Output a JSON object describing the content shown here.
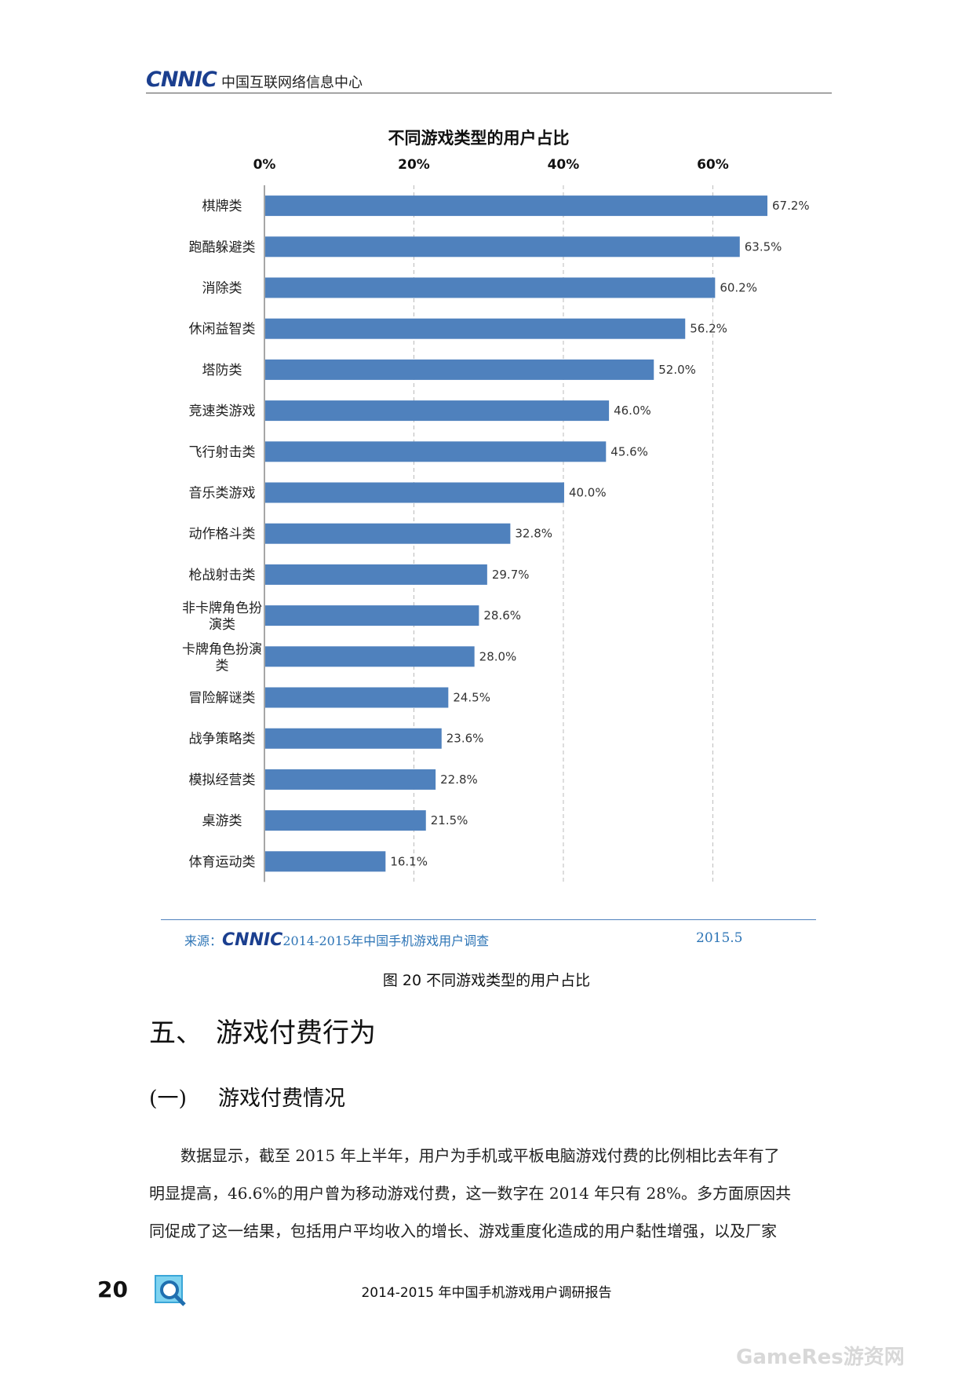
{
  "header": {
    "logo": "CNNIC",
    "org": "中国互联网络信息中心"
  },
  "chart_data": {
    "type": "bar",
    "orientation": "horizontal",
    "title": "不同游戏类型的用户占比",
    "xlim": [
      0,
      67.2
    ],
    "x_ticks": [
      "0%",
      "20%",
      "40%",
      "60%"
    ],
    "x_tick_values": [
      0,
      20,
      40,
      60
    ],
    "grid": "vertical dashed",
    "bar_color": "#4f81bd",
    "categories": [
      [
        "棋牌类"
      ],
      [
        "跑酷躲避类"
      ],
      [
        "消除类"
      ],
      [
        "休闲益智类"
      ],
      [
        "塔防类"
      ],
      [
        "竞速类游戏"
      ],
      [
        "飞行射击类"
      ],
      [
        "音乐类游戏"
      ],
      [
        "动作格斗类"
      ],
      [
        "枪战射击类"
      ],
      [
        "非卡牌角色扮",
        "演类"
      ],
      [
        "卡牌角色扮演",
        "类"
      ],
      [
        "冒险解谜类"
      ],
      [
        "战争策略类"
      ],
      [
        "模拟经营类"
      ],
      [
        "桌游类"
      ],
      [
        "体育运动类"
      ]
    ],
    "values": [
      67.2,
      63.5,
      60.2,
      56.2,
      52.0,
      46.0,
      45.6,
      40.0,
      32.8,
      29.7,
      28.6,
      28.0,
      24.5,
      23.6,
      22.8,
      21.5,
      16.1
    ],
    "value_labels": [
      "67.2%",
      "63.5%",
      "60.2%",
      "56.2%",
      "52.0%",
      "46.0%",
      "45.6%",
      "40.0%",
      "32.8%",
      "29.7%",
      "28.6%",
      "28.0%",
      "24.5%",
      "23.6%",
      "22.8%",
      "21.5%",
      "16.1%"
    ]
  },
  "source": {
    "prefix": "来源：",
    "logo": "CNNIC",
    "text": "2014-2015年中国手机游戏用户调查",
    "date": "2015.5"
  },
  "caption": "图 20 不同游戏类型的用户占比",
  "section": {
    "num": "五、",
    "title": "游戏付费行为"
  },
  "subsection": {
    "num": "(一)",
    "title": "游戏付费情况"
  },
  "paragraph": [
    "数据显示，截至 2015 年上半年，用户为手机或平板电脑游戏付费的比例相比去年有了",
    "明显提高，46.6%的用户曾为移动游戏付费，这一数字在 2014 年只有 28%。多方面原因共",
    "同促成了这一结果，包括用户平均收入的增长、游戏重度化造成的用户黏性增强，以及厂家"
  ],
  "footer": {
    "page": "20",
    "title": "2014-2015 年中国手机游戏用户调研报告",
    "watermark": "GameRes游资网"
  }
}
